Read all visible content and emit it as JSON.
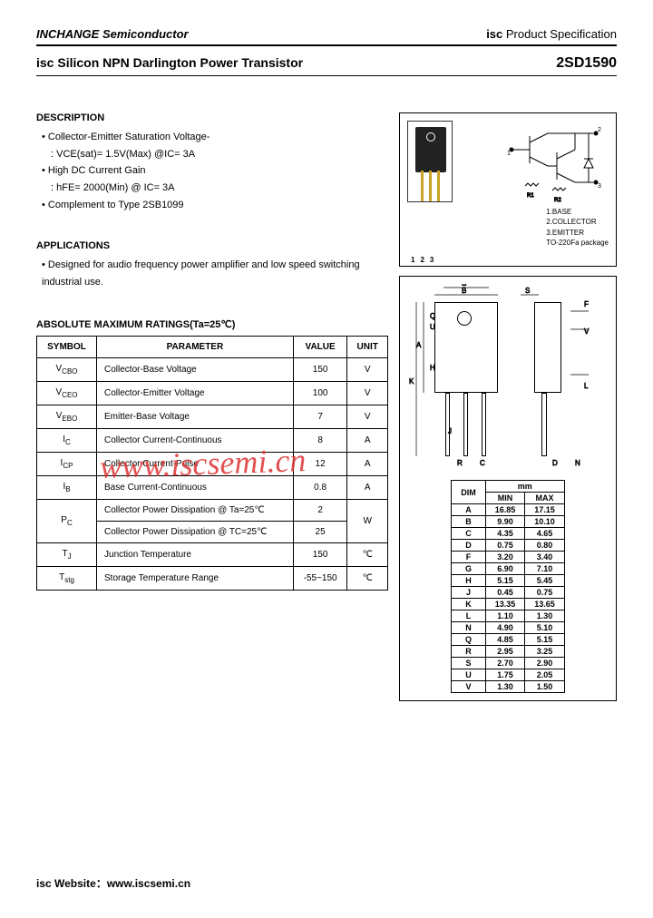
{
  "header": {
    "company": "INCHANGE Semiconductor",
    "spec_prefix": "isc",
    "spec_text": " Product Specification"
  },
  "title": {
    "prefix": "isc",
    "text": " Silicon NPN Darlington Power Transistor",
    "part_number": "2SD1590"
  },
  "description": {
    "heading": "DESCRIPTION",
    "items": [
      "Collector-Emitter Saturation Voltage-",
      "High DC Current Gain",
      "Complement to Type 2SB1099"
    ],
    "sub1": ": VCE(sat)= 1.5V(Max) @IC= 3A",
    "sub2": ": hFE= 2000(Min) @ IC= 3A"
  },
  "applications": {
    "heading": "APPLICATIONS",
    "text": "Designed for audio frequency power amplifier and low speed switching industrial use."
  },
  "ratings": {
    "heading": "ABSOLUTE MAXIMUM RATINGS(Ta=25℃)",
    "columns": [
      "SYMBOL",
      "PARAMETER",
      "VALUE",
      "UNIT"
    ],
    "rows": [
      {
        "sym": "VCBO",
        "param": "Collector-Base Voltage",
        "val": "150",
        "unit": "V"
      },
      {
        "sym": "VCEO",
        "param": "Collector-Emitter Voltage",
        "val": "100",
        "unit": "V"
      },
      {
        "sym": "VEBO",
        "param": "Emitter-Base Voltage",
        "val": "7",
        "unit": "V"
      },
      {
        "sym": "IC",
        "param": "Collector Current-Continuous",
        "val": "8",
        "unit": "A"
      },
      {
        "sym": "ICP",
        "param": "Collector Current-Pulse",
        "val": "12",
        "unit": "A"
      },
      {
        "sym": "IB",
        "param": "Base Current-Continuous",
        "val": "0.8",
        "unit": "A"
      },
      {
        "sym": "PC",
        "param": "Collector Power Dissipation @ Ta=25℃",
        "val": "2",
        "unit": "W",
        "rowspan_unit": true
      },
      {
        "sym": "",
        "param": "Collector Power Dissipation @ TC=25℃",
        "val": "25",
        "unit": ""
      },
      {
        "sym": "TJ",
        "param": "Junction Temperature",
        "val": "150",
        "unit": "℃"
      },
      {
        "sym": "Tstg",
        "param": "Storage Temperature Range",
        "val": "-55~150",
        "unit": "℃"
      }
    ]
  },
  "pinout": {
    "pins": [
      "1.BASE",
      "2.COLLECTOR",
      "3.EMITTER"
    ],
    "package": "TO-220Fa package"
  },
  "dimensions": {
    "unit_label": "mm",
    "columns": [
      "DIM",
      "MIN",
      "MAX"
    ],
    "rows": [
      [
        "A",
        "16.85",
        "17.15"
      ],
      [
        "B",
        "9.90",
        "10.10"
      ],
      [
        "C",
        "4.35",
        "4.65"
      ],
      [
        "D",
        "0.75",
        "0.80"
      ],
      [
        "F",
        "3.20",
        "3.40"
      ],
      [
        "G",
        "6.90",
        "7.10"
      ],
      [
        "H",
        "5.15",
        "5.45"
      ],
      [
        "J",
        "0.45",
        "0.75"
      ],
      [
        "K",
        "13.35",
        "13.65"
      ],
      [
        "L",
        "1.10",
        "1.30"
      ],
      [
        "N",
        "4.90",
        "5.10"
      ],
      [
        "Q",
        "4.85",
        "5.15"
      ],
      [
        "R",
        "2.95",
        "3.25"
      ],
      [
        "S",
        "2.70",
        "2.90"
      ],
      [
        "U",
        "1.75",
        "2.05"
      ],
      [
        "V",
        "1.30",
        "1.50"
      ]
    ]
  },
  "footer": {
    "label": "isc Website：",
    "url": "www.iscsemi.cn"
  },
  "watermark": "www.iscsemi.cn"
}
